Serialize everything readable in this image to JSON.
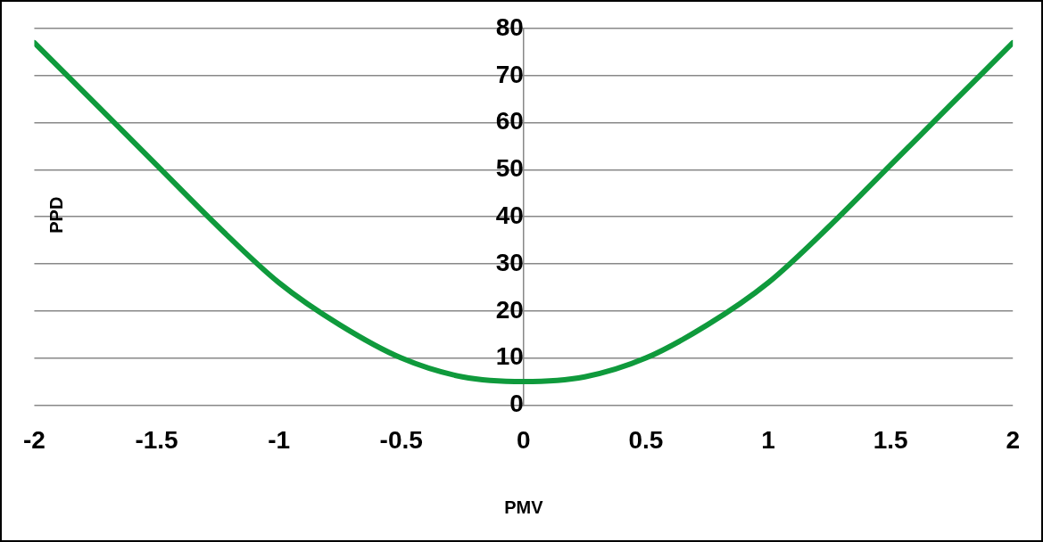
{
  "chart_data": {
    "type": "line",
    "xlabel": "PMV",
    "ylabel": "PPD",
    "x": [
      -2,
      -1.75,
      -1.5,
      -1.25,
      -1,
      -0.75,
      -0.5,
      -0.25,
      0,
      0.25,
      0.5,
      0.75,
      1,
      1.25,
      1.5,
      1.75,
      2
    ],
    "series": [
      {
        "color": "#0f9a3c",
        "values": [
          77,
          64,
          51,
          38,
          26,
          17,
          10,
          6,
          5,
          6,
          10,
          17,
          26,
          38,
          51,
          64,
          77
        ]
      }
    ],
    "xlim": [
      -2,
      2
    ],
    "xticks": [
      -2,
      -1.5,
      -1,
      -0.5,
      0,
      0.5,
      1,
      1.5,
      2
    ],
    "ylim": [
      0,
      80
    ],
    "yticks": [
      0,
      10,
      20,
      30,
      40,
      50,
      60,
      70,
      80
    ],
    "grid": "y",
    "legend": false,
    "marker": "none",
    "line_style": "solid"
  }
}
